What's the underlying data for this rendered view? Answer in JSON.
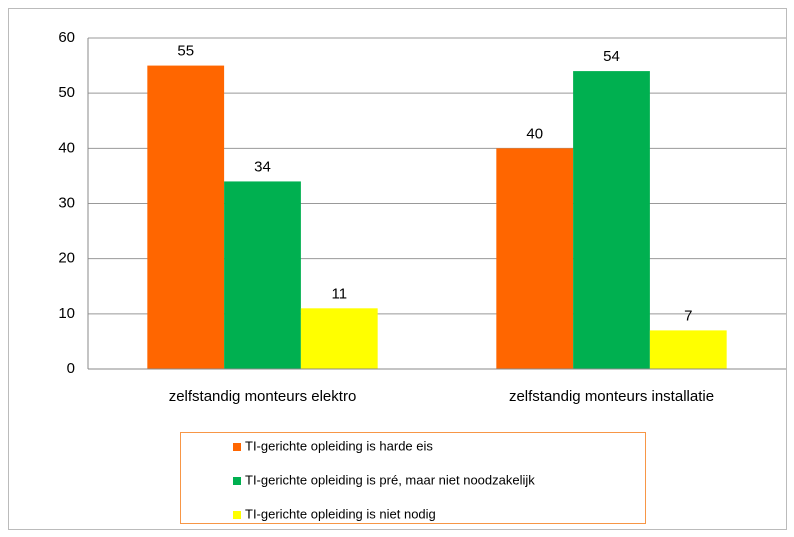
{
  "chart_data": {
    "type": "bar",
    "categories": [
      "zelfstandig monteurs elektro",
      "zelfstandig monteurs installatie"
    ],
    "series": [
      {
        "name": "TI-gerichte opleiding is harde eis",
        "color": "#ff6600",
        "values": [
          55,
          40
        ]
      },
      {
        "name": "TI-gerichte opleiding is pré, maar niet noodzakelijk",
        "color": "#00b050",
        "values": [
          34,
          54
        ]
      },
      {
        "name": "TI-gerichte opleiding is niet nodig",
        "color": "#ffff00",
        "values": [
          11,
          7
        ]
      }
    ],
    "ylim": [
      0,
      60
    ],
    "yticks": [
      0,
      10,
      20,
      30,
      40,
      50,
      60
    ],
    "grid": true,
    "legend": "bottom"
  }
}
